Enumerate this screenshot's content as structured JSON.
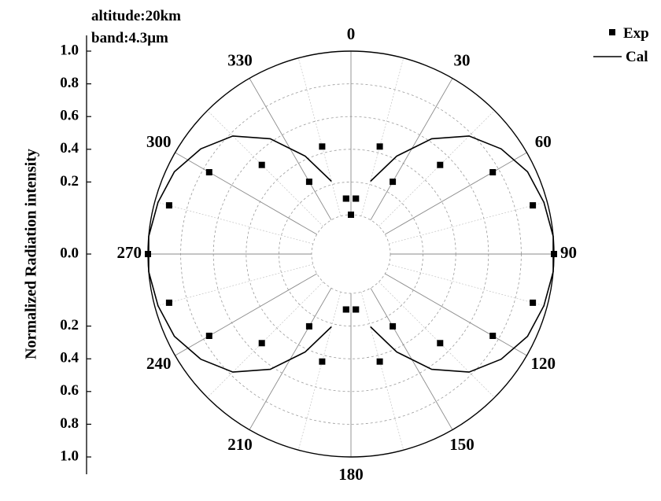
{
  "chart_data": {
    "type": "scatter",
    "coordinate_system": "polar",
    "angle_direction": "clockwise",
    "angle_zero_at": "top",
    "annotations": [
      "altitude:20km",
      "band:4.3μm"
    ],
    "ylabel": "Normalized Radiation intensity",
    "radial_ticks_upper": [
      "1.0",
      "0.8",
      "0.6",
      "0.4",
      "0.2",
      "0.0"
    ],
    "radial_ticks_lower": [
      "0.2",
      "0.4",
      "0.6",
      "0.8",
      "1.0"
    ],
    "angular_ticks": [
      "0",
      "30",
      "60",
      "90",
      "120",
      "150",
      "180",
      "210",
      "240",
      "270",
      "300",
      "330"
    ],
    "rlim": [
      0,
      1.0
    ],
    "grid": true,
    "legend": {
      "position": "top-right",
      "entries": [
        {
          "label": "Exp",
          "marker": "square"
        },
        {
          "label": "Cal",
          "marker": "line"
        }
      ]
    },
    "series": [
      {
        "name": "Exp",
        "kind": "points",
        "theta": [
          0,
          5,
          30,
          45,
          60,
          75,
          90,
          105,
          120,
          135,
          150,
          175,
          185,
          210,
          225,
          240,
          255,
          270,
          285,
          300,
          315,
          330,
          355,
          355,
          5,
          175,
          185,
          345,
          15,
          165,
          195
        ],
        "r": [
          0,
          0.1,
          0.27,
          0.53,
          0.76,
          0.91,
          1.0,
          0.91,
          0.76,
          0.53,
          0.27,
          0.1,
          0.1,
          0.27,
          0.53,
          0.76,
          0.91,
          1.0,
          0.91,
          0.76,
          0.53,
          0.27,
          0.1,
          0.1,
          0.1,
          0.1,
          0.1,
          0.44,
          0.44,
          0.44,
          0.44
        ]
      },
      {
        "name": "Cal",
        "kind": "line",
        "theta": [
          15,
          25,
          35,
          45,
          55,
          65,
          75,
          85,
          95,
          105,
          115,
          125,
          135,
          145,
          155,
          165,
          195,
          205,
          215,
          225,
          235,
          245,
          255,
          265,
          275,
          285,
          295,
          305,
          315,
          325,
          335,
          345
        ],
        "r": [
          0.22,
          0.42,
          0.62,
          0.78,
          0.88,
          0.95,
          0.98,
          1.0,
          1.0,
          0.98,
          0.95,
          0.88,
          0.78,
          0.62,
          0.42,
          0.22,
          0.22,
          0.42,
          0.62,
          0.78,
          0.88,
          0.95,
          0.98,
          1.0,
          1.0,
          0.98,
          0.95,
          0.88,
          0.78,
          0.62,
          0.42,
          0.22
        ]
      }
    ]
  }
}
